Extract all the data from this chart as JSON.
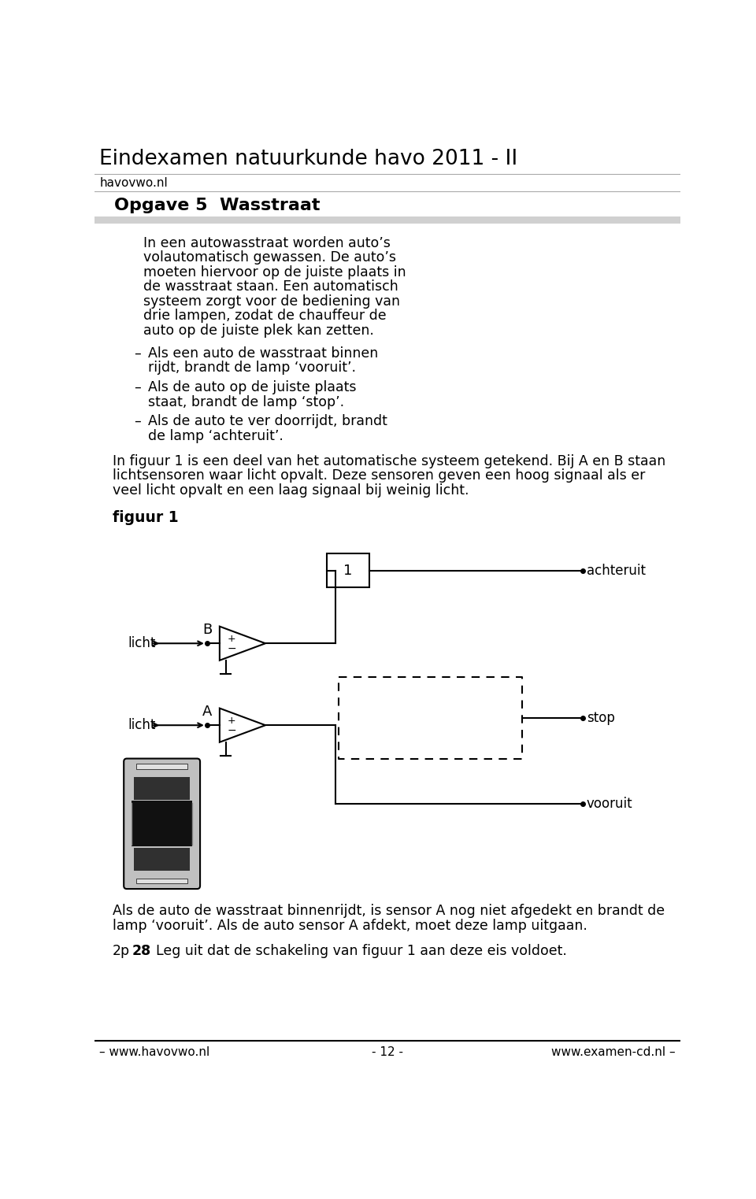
{
  "title": "Eindexamen natuurkunde havo 2011 - II",
  "subtitle": "havovwo.nl",
  "section_title": "Opgave 5  Wasstraat",
  "body_text_1": "In een autowasstraat worden auto’s\nvolautomatisch gewassen. De auto’s\nmoeten hiervoor op de juiste plaats in\nde wasstraat staan. Een automatisch\nsysteem zorgt voor de bediening van\ndrie lampen, zodat de chauffeur de\nauto op de juiste plek kan zetten.",
  "bullets": [
    "Als een auto de wasstraat binnen rijdt, brandt de lamp ‘vooruit’.",
    "Als de auto op de juiste plaats staat, brandt de lamp ‘stop’.",
    "Als de auto te ver doorrijdt, brandt de lamp ‘achteruit’."
  ],
  "body_text_2": "In figuur 1 is een deel van het automatische systeem getekend. Bij A en B staan\nlichtsensoren waar licht opvalt. Deze sensoren geven een hoog signaal als er\nveel licht opvalt en een laag signaal bij weinig licht.",
  "fig_label": "figuur 1",
  "label_achteruit": "achteruit",
  "label_stop": "stop",
  "label_vooruit": "vooruit",
  "label_licht": "licht",
  "label_B": "B",
  "label_A": "A",
  "label_1": "1",
  "body_text_3": "Als de auto de wasstraat binnenrijdt, is sensor A nog niet afgedekt en brandt de\nlamp ‘vooruit’. Als de auto sensor A afdekt, moet deze lamp uitgaan.",
  "question": "Leg uit dat de schakeling van figuur 1 aan deze eis voldoet.",
  "question_prefix": "2p",
  "question_number": "28",
  "footer_left": "– www.havovwo.nl",
  "footer_center": "- 12 -",
  "footer_right": "www.examen-cd.nl –",
  "bg_color": "#ffffff",
  "text_color": "#000000",
  "section_bar_color": "#d0d0d0"
}
